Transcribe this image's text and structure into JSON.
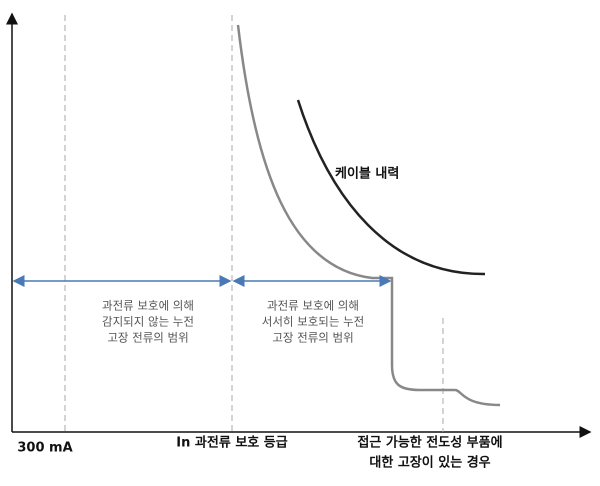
{
  "curve_label": "케이블 내력",
  "regions": [
    {
      "lines": [
        "과전류 보호에 의해",
        "감지되지 않는 누전",
        "고장 전류의 범위"
      ]
    },
    {
      "lines": [
        "과전류 보호에 의해",
        "서서히 보호되는 누전",
        "고장 전류의 범위"
      ]
    }
  ],
  "x_labels": [
    {
      "lines": [
        "300 mA"
      ]
    },
    {
      "lines": [
        "In 과전류 보호 등급"
      ]
    },
    {
      "lines": [
        "접근 가능한 전도성 부품에",
        "대한 고장이 있는 경우"
      ]
    }
  ]
}
